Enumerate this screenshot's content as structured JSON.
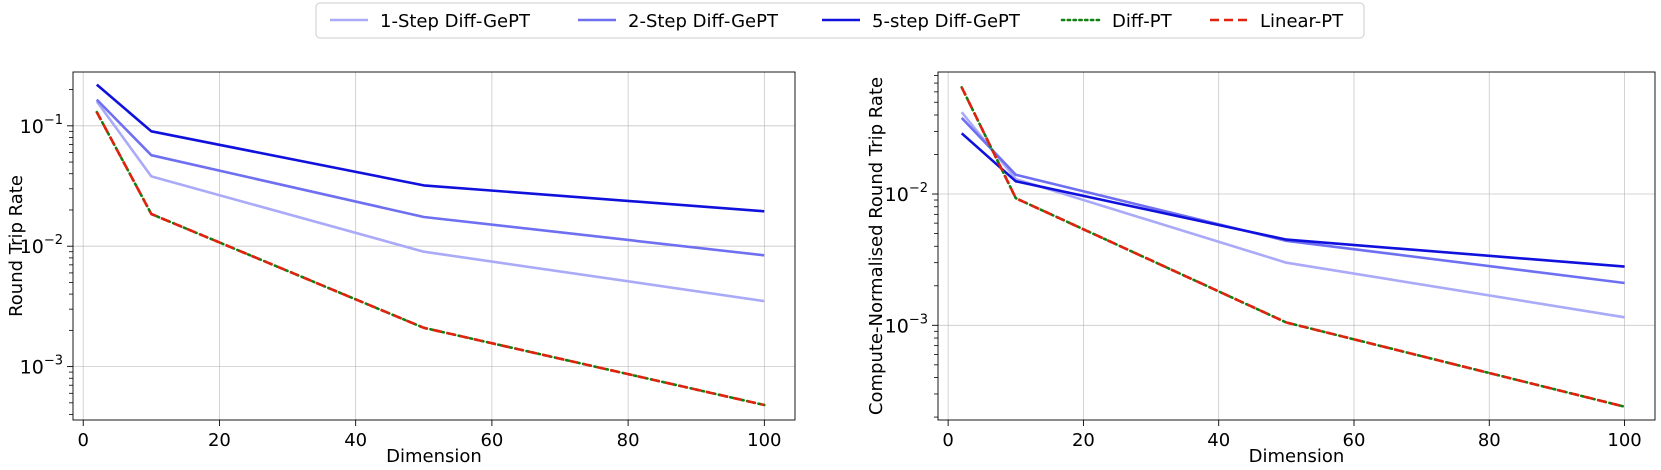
{
  "legend": {
    "entries": [
      {
        "label": "1-Step Diff-GePT",
        "color": "#aaaaf8",
        "style": "solid"
      },
      {
        "label": "2-Step Diff-GePT",
        "color": "#6f6ff1",
        "style": "solid"
      },
      {
        "label": "5-step Diff-GePT",
        "color": "#1111dd",
        "style": "solid"
      },
      {
        "label": "Diff-PT",
        "color": "#108010",
        "style": "dotted"
      },
      {
        "label": "Linear-PT",
        "color": "#e0220e",
        "style": "dashed"
      }
    ]
  },
  "chart_data": [
    {
      "type": "line",
      "title": "",
      "xlabel": "Dimension",
      "ylabel": "Round Trip Rate",
      "xscale": "linear",
      "yscale": "log",
      "xlim": [
        -1.5,
        104.5
      ],
      "ylim": [
        0.00036,
        0.28
      ],
      "xticks": [
        0,
        20,
        40,
        60,
        80,
        100
      ],
      "xtick_labels": [
        "0",
        "20",
        "40",
        "60",
        "80",
        "100"
      ],
      "yticks": [
        0.001,
        0.01,
        0.1
      ],
      "ytick_labels": [
        "10−3",
        "10−2",
        "10−1"
      ],
      "grid": true,
      "x": [
        2,
        10,
        50,
        100
      ],
      "series": [
        {
          "name": "1-Step Diff-GePT",
          "values": [
            0.16,
            0.038,
            0.009,
            0.0035
          ]
        },
        {
          "name": "2-Step Diff-GePT",
          "values": [
            0.165,
            0.057,
            0.0175,
            0.0084
          ]
        },
        {
          "name": "5-step Diff-GePT",
          "values": [
            0.22,
            0.09,
            0.032,
            0.0195
          ]
        },
        {
          "name": "Diff-PT",
          "values": [
            0.13,
            0.0185,
            0.0021,
            0.00048
          ]
        },
        {
          "name": "Linear-PT",
          "values": [
            0.13,
            0.0185,
            0.0021,
            0.00048
          ]
        }
      ]
    },
    {
      "type": "line",
      "title": "",
      "xlabel": "Dimension",
      "ylabel": "Compute-Normalised Round Trip Rate",
      "xscale": "linear",
      "yscale": "log",
      "xlim": [
        -1.5,
        104.5
      ],
      "ylim": [
        0.00019,
        0.085
      ],
      "xticks": [
        0,
        20,
        40,
        60,
        80,
        100
      ],
      "xtick_labels": [
        "0",
        "20",
        "40",
        "60",
        "80",
        "100"
      ],
      "yticks": [
        0.001,
        0.01
      ],
      "ytick_labels": [
        "10−3",
        "10−2"
      ],
      "grid": true,
      "x": [
        2,
        10,
        50,
        100
      ],
      "series": [
        {
          "name": "1-Step Diff-GePT",
          "values": [
            0.042,
            0.013,
            0.003,
            0.00115
          ]
        },
        {
          "name": "2-Step Diff-GePT",
          "values": [
            0.038,
            0.014,
            0.0044,
            0.0021
          ]
        },
        {
          "name": "5-step Diff-GePT",
          "values": [
            0.029,
            0.0125,
            0.0045,
            0.0028
          ]
        },
        {
          "name": "Diff-PT",
          "values": [
            0.065,
            0.0093,
            0.00105,
            0.00024
          ]
        },
        {
          "name": "Linear-PT",
          "values": [
            0.065,
            0.0093,
            0.00105,
            0.00024
          ]
        }
      ]
    }
  ]
}
